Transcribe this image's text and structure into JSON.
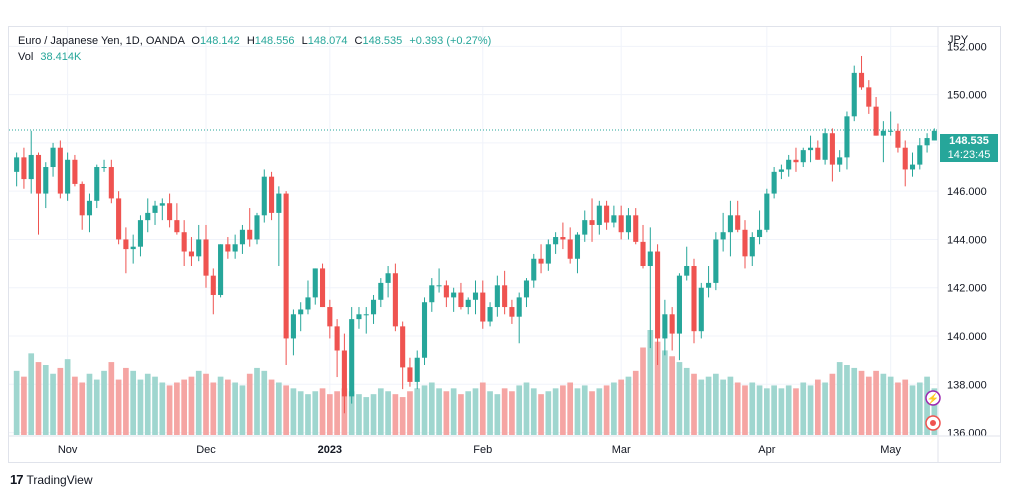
{
  "symbol": {
    "name": "Euro / Japanese Yen",
    "interval": "1D",
    "source": "OANDA",
    "o_label": "O",
    "o": "148.142",
    "h_label": "H",
    "h": "148.556",
    "l_label": "L",
    "l": "148.074",
    "c_label": "C",
    "c": "148.535",
    "change": "+0.393 (+0.27%)"
  },
  "volume": {
    "label": "Vol",
    "value": "38.414K"
  },
  "axis_unit": "JPY",
  "price_tag": {
    "price": "148.535",
    "countdown": "14:23:45"
  },
  "brand": "TradingView",
  "colors": {
    "up": "#26a69a",
    "down": "#ef5350",
    "up_vol": "#9fd6cf",
    "down_vol": "#f5a5a3",
    "grid": "#f0f3fa",
    "current_line": "#26a69a",
    "accent_purple": "#9c27b0",
    "accent_red": "#ef5350"
  },
  "chart_data": {
    "type": "candlestick",
    "y_ticks": [
      "152.000",
      "150.000",
      "148.000",
      "146.000",
      "144.000",
      "142.000",
      "140.000",
      "138.000",
      "136.000"
    ],
    "y_tick_values": [
      152,
      150,
      148,
      146,
      144,
      142,
      140,
      138,
      136
    ],
    "ylim": [
      135.9,
      152.8
    ],
    "x_ticks": [
      {
        "label": "Nov",
        "index": 7
      },
      {
        "label": "Dec",
        "index": 26
      },
      {
        "label": "2023",
        "index": 43
      },
      {
        "label": "Feb",
        "index": 64
      },
      {
        "label": "Mar",
        "index": 83
      },
      {
        "label": "Apr",
        "index": 103
      },
      {
        "label": "May",
        "index": 120
      }
    ],
    "current_price": 148.535,
    "candles": [
      [
        146.8,
        147.6,
        146.2,
        147.4,
        22
      ],
      [
        147.4,
        147.8,
        146.1,
        146.5,
        20
      ],
      [
        146.5,
        148.5,
        145.9,
        147.5,
        28
      ],
      [
        147.5,
        147.6,
        144.2,
        145.9,
        25
      ],
      [
        145.9,
        147.2,
        145.3,
        147.0,
        24
      ],
      [
        147.0,
        148.0,
        146.6,
        147.8,
        21
      ],
      [
        147.8,
        148.1,
        145.7,
        145.9,
        23
      ],
      [
        145.9,
        147.6,
        145.6,
        147.3,
        26
      ],
      [
        147.3,
        147.5,
        146.2,
        146.3,
        20
      ],
      [
        146.3,
        146.4,
        144.4,
        145.0,
        18
      ],
      [
        145.0,
        145.9,
        144.3,
        145.6,
        21
      ],
      [
        145.6,
        147.1,
        145.3,
        147.0,
        19
      ],
      [
        147.0,
        147.3,
        146.8,
        147.0,
        22
      ],
      [
        147.0,
        147.3,
        145.5,
        145.7,
        25
      ],
      [
        145.7,
        146.0,
        143.8,
        144.0,
        19
      ],
      [
        144.0,
        144.5,
        142.6,
        143.6,
        23
      ],
      [
        143.6,
        144.2,
        143.0,
        143.7,
        22
      ],
      [
        143.7,
        145.0,
        143.3,
        144.8,
        19
      ],
      [
        144.8,
        145.7,
        144.3,
        145.1,
        21
      ],
      [
        145.1,
        145.6,
        144.6,
        145.4,
        20
      ],
      [
        145.4,
        145.7,
        144.8,
        145.5,
        18
      ],
      [
        145.5,
        145.9,
        144.5,
        144.8,
        17
      ],
      [
        144.8,
        145.5,
        144.2,
        144.3,
        18
      ],
      [
        144.3,
        144.8,
        142.9,
        143.5,
        19
      ],
      [
        143.5,
        144.1,
        142.9,
        143.3,
        20
      ],
      [
        143.3,
        144.6,
        143.1,
        144.0,
        22
      ],
      [
        144.0,
        144.6,
        142.0,
        142.5,
        21
      ],
      [
        142.5,
        142.8,
        140.9,
        141.7,
        18
      ],
      [
        141.7,
        143.8,
        141.6,
        143.8,
        20
      ],
      [
        143.8,
        144.1,
        143.2,
        143.5,
        19
      ],
      [
        143.5,
        144.2,
        143.2,
        143.8,
        18
      ],
      [
        143.8,
        144.6,
        143.4,
        144.4,
        17
      ],
      [
        144.4,
        145.3,
        143.7,
        144.0,
        21
      ],
      [
        144.0,
        145.1,
        143.8,
        145.0,
        23
      ],
      [
        145.0,
        146.9,
        144.7,
        146.6,
        22
      ],
      [
        146.6,
        146.8,
        144.8,
        145.1,
        19
      ],
      [
        145.1,
        146.2,
        142.9,
        145.9,
        18
      ],
      [
        145.9,
        146.0,
        138.8,
        139.9,
        17
      ],
      [
        139.9,
        141.1,
        139.2,
        140.9,
        16
      ],
      [
        140.9,
        141.4,
        140.2,
        141.1,
        15
      ],
      [
        141.1,
        142.3,
        140.9,
        141.6,
        14
      ],
      [
        141.6,
        142.8,
        141.3,
        142.8,
        15
      ],
      [
        142.8,
        143.0,
        141.2,
        141.2,
        16
      ],
      [
        141.2,
        141.5,
        139.9,
        140.4,
        14
      ],
      [
        140.4,
        140.7,
        138.3,
        139.4,
        15
      ],
      [
        139.4,
        140.1,
        136.8,
        137.5,
        16
      ],
      [
        137.5,
        141.2,
        137.2,
        140.7,
        15
      ],
      [
        140.7,
        141.2,
        140.3,
        140.9,
        14
      ],
      [
        140.9,
        141.2,
        140.1,
        140.9,
        13
      ],
      [
        140.9,
        141.7,
        140.5,
        141.5,
        14
      ],
      [
        141.5,
        142.4,
        141.2,
        142.2,
        16
      ],
      [
        142.2,
        142.9,
        141.6,
        142.6,
        15
      ],
      [
        142.6,
        143.0,
        140.2,
        140.4,
        14
      ],
      [
        140.4,
        140.6,
        137.8,
        138.7,
        13
      ],
      [
        138.7,
        139.1,
        137.9,
        138.1,
        15
      ],
      [
        138.1,
        139.4,
        137.8,
        139.1,
        16
      ],
      [
        139.1,
        141.6,
        138.8,
        141.4,
        17
      ],
      [
        141.4,
        142.4,
        141.0,
        142.1,
        18
      ],
      [
        142.1,
        142.8,
        141.8,
        142.1,
        16
      ],
      [
        142.1,
        142.3,
        141.2,
        141.6,
        15
      ],
      [
        141.6,
        142.0,
        141.0,
        141.8,
        16
      ],
      [
        141.8,
        142.2,
        141.1,
        141.2,
        14
      ],
      [
        141.2,
        141.6,
        140.9,
        141.5,
        15
      ],
      [
        141.5,
        142.3,
        140.9,
        141.8,
        16
      ],
      [
        141.8,
        142.3,
        140.3,
        140.6,
        18
      ],
      [
        140.6,
        141.4,
        140.4,
        141.2,
        15
      ],
      [
        141.2,
        142.5,
        140.8,
        142.1,
        14
      ],
      [
        142.1,
        142.7,
        140.9,
        141.2,
        16
      ],
      [
        141.2,
        141.5,
        140.5,
        140.8,
        15
      ],
      [
        140.8,
        141.8,
        139.7,
        141.6,
        17
      ],
      [
        141.6,
        142.4,
        141.2,
        142.3,
        18
      ],
      [
        142.3,
        143.4,
        142.0,
        143.2,
        16
      ],
      [
        143.2,
        143.8,
        142.6,
        143.0,
        14
      ],
      [
        143.0,
        144.0,
        142.7,
        143.8,
        15
      ],
      [
        143.8,
        144.3,
        143.4,
        144.1,
        16
      ],
      [
        144.1,
        144.7,
        143.6,
        144.0,
        17
      ],
      [
        144.0,
        144.5,
        143.0,
        143.2,
        18
      ],
      [
        143.2,
        144.3,
        142.6,
        144.2,
        16
      ],
      [
        144.2,
        145.2,
        143.9,
        144.8,
        17
      ],
      [
        144.8,
        145.7,
        143.9,
        144.6,
        15
      ],
      [
        144.6,
        145.6,
        144.2,
        145.4,
        16
      ],
      [
        145.4,
        145.6,
        144.4,
        144.7,
        17
      ],
      [
        144.7,
        145.4,
        144.5,
        145.0,
        18
      ],
      [
        145.0,
        145.4,
        144.0,
        144.3,
        19
      ],
      [
        144.3,
        145.3,
        144.0,
        145.0,
        20
      ],
      [
        145.0,
        145.3,
        143.8,
        143.9,
        22
      ],
      [
        143.9,
        144.6,
        142.8,
        142.9,
        30
      ],
      [
        142.9,
        144.5,
        139.5,
        143.5,
        36
      ],
      [
        143.5,
        143.8,
        138.8,
        139.9,
        32
      ],
      [
        139.9,
        141.5,
        139.2,
        140.9,
        29
      ],
      [
        140.9,
        141.2,
        139.4,
        140.1,
        27
      ],
      [
        140.1,
        142.6,
        139.0,
        142.5,
        25
      ],
      [
        142.5,
        143.7,
        142.3,
        142.9,
        23
      ],
      [
        142.9,
        143.2,
        139.7,
        140.2,
        21
      ],
      [
        140.2,
        142.2,
        139.9,
        142.0,
        19
      ],
      [
        142.0,
        142.9,
        141.6,
        142.2,
        20
      ],
      [
        142.2,
        144.3,
        141.9,
        144.0,
        21
      ],
      [
        144.0,
        145.1,
        143.5,
        144.3,
        19
      ],
      [
        144.3,
        145.6,
        143.3,
        145.0,
        20
      ],
      [
        145.0,
        145.6,
        144.3,
        144.4,
        18
      ],
      [
        144.4,
        144.8,
        142.8,
        143.3,
        17
      ],
      [
        143.3,
        144.3,
        142.9,
        144.1,
        18
      ],
      [
        144.1,
        145.2,
        143.8,
        144.4,
        17
      ],
      [
        144.4,
        146.1,
        144.3,
        145.9,
        16
      ],
      [
        145.9,
        147.0,
        145.7,
        146.8,
        17
      ],
      [
        146.8,
        147.1,
        146.5,
        146.9,
        16
      ],
      [
        146.9,
        147.5,
        146.6,
        147.3,
        17
      ],
      [
        147.3,
        147.8,
        146.8,
        147.2,
        16
      ],
      [
        147.2,
        147.8,
        147.0,
        147.7,
        18
      ],
      [
        147.7,
        148.3,
        147.2,
        147.8,
        17
      ],
      [
        147.8,
        148.1,
        147.3,
        147.3,
        19
      ],
      [
        147.3,
        148.6,
        147.1,
        148.4,
        18
      ],
      [
        148.4,
        148.6,
        146.4,
        147.1,
        21
      ],
      [
        147.1,
        147.7,
        146.8,
        147.4,
        25
      ],
      [
        147.4,
        149.3,
        146.9,
        149.1,
        24
      ],
      [
        149.1,
        151.2,
        148.9,
        150.9,
        23
      ],
      [
        150.9,
        151.6,
        150.2,
        150.3,
        22
      ],
      [
        150.3,
        150.6,
        149.2,
        149.5,
        20
      ],
      [
        149.5,
        149.9,
        148.3,
        148.3,
        22
      ],
      [
        148.3,
        148.9,
        147.2,
        148.5,
        21
      ],
      [
        148.5,
        149.3,
        148.3,
        148.5,
        20
      ],
      [
        148.5,
        148.8,
        147.6,
        147.8,
        18
      ],
      [
        147.8,
        148.1,
        146.2,
        146.9,
        19
      ],
      [
        146.9,
        147.6,
        146.6,
        147.1,
        17
      ],
      [
        147.1,
        148.2,
        146.9,
        147.9,
        18
      ],
      [
        147.9,
        148.4,
        147.6,
        148.2,
        20
      ],
      [
        148.1,
        148.6,
        148.1,
        148.5,
        16
      ]
    ]
  }
}
